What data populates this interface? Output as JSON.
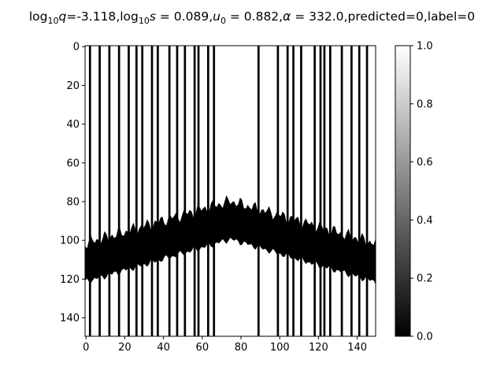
{
  "chart_data": {
    "type": "heatmap",
    "colormap": "gray",
    "title_parts": {
      "q_name": "log",
      "q_sub": "10",
      "q_var": "q",
      "q_value": "=-3.118",
      "s_name": "log",
      "s_sub": "10",
      "s_var": "s",
      "s_value": " = 0.089",
      "u_var": "u",
      "u_sub": "0",
      "u_value": " = 0.882",
      "alpha_sym": "α",
      "alpha_value": " = 332.0",
      "tail": "predicted=0,label=0"
    },
    "x_range": [
      0,
      150
    ],
    "y_range": [
      0,
      150
    ],
    "y_inverted": true,
    "x_ticks": [
      "0",
      "20",
      "40",
      "60",
      "80",
      "100",
      "120",
      "140"
    ],
    "y_ticks": [
      "0",
      "20",
      "40",
      "60",
      "80",
      "100",
      "120",
      "140"
    ],
    "colorbar": {
      "range": [
        0.0,
        1.0
      ],
      "ticks": [
        "0.0",
        "0.2",
        "0.4",
        "0.6",
        "0.8",
        "1.0"
      ]
    },
    "band_center_rows": [
      [
        0,
        112
      ],
      [
        75,
        90
      ],
      [
        150,
        112
      ]
    ],
    "band_half_width": 10,
    "dark_columns": [
      2,
      7,
      12,
      17,
      22,
      26,
      29,
      34,
      37,
      43,
      47,
      51,
      56,
      58,
      63,
      66,
      89,
      99,
      104,
      107,
      111,
      118,
      121,
      123,
      126,
      132,
      137,
      141,
      145
    ]
  }
}
